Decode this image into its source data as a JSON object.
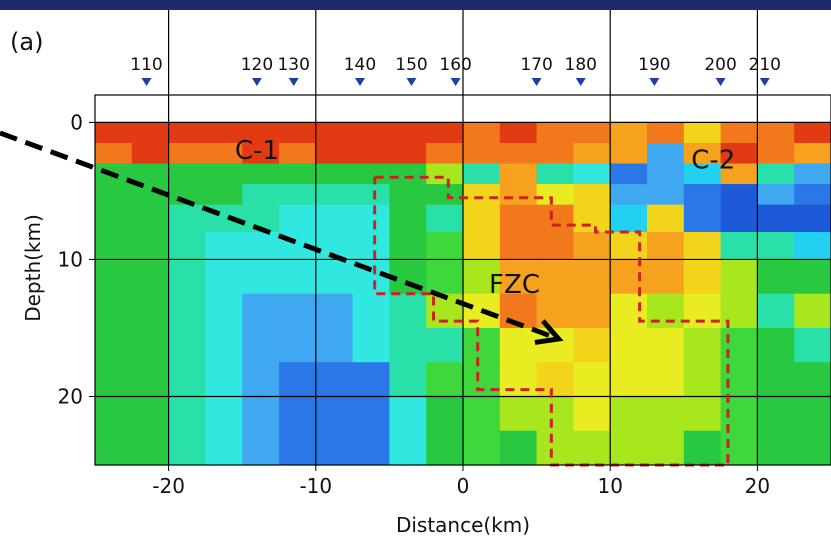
{
  "chart_data": {
    "type": "heatmap",
    "panel_label": "(a)",
    "xlabel": "Distance(km)",
    "ylabel": "Depth(km)",
    "xlim": [
      -25,
      25
    ],
    "ylim": [
      25,
      -2
    ],
    "x_ticks": [
      -20,
      -10,
      0,
      10,
      20
    ],
    "x_tick_labels": [
      "-20",
      "-10",
      "0",
      "10",
      "20"
    ],
    "y_ticks": [
      0,
      10,
      20
    ],
    "y_tick_labels": [
      "0",
      "10",
      "20"
    ],
    "grid": true,
    "stations": [
      {
        "label": "110",
        "x": -21.5
      },
      {
        "label": "120",
        "x": -14
      },
      {
        "label": "130",
        "x": -11.5
      },
      {
        "label": "140",
        "x": -7
      },
      {
        "label": "150",
        "x": -3.5
      },
      {
        "label": "160",
        "x": -0.5
      },
      {
        "label": "170",
        "x": 5
      },
      {
        "label": "180",
        "x": 8
      },
      {
        "label": "190",
        "x": 13
      },
      {
        "label": "200",
        "x": 17.5
      },
      {
        "label": "210",
        "x": 20.5
      }
    ],
    "station_marker_color": "#1a3fa8",
    "annotations": [
      {
        "text": "C-1",
        "x": -14,
        "y": 2
      },
      {
        "text": "C-2",
        "x": 17,
        "y": 2.7
      },
      {
        "text": "FZC",
        "x": 3.5,
        "y": 11.8
      }
    ],
    "fzc_outline": [
      [
        -6,
        4
      ],
      [
        -1,
        4
      ],
      [
        -1,
        5.5
      ],
      [
        6,
        5.5
      ],
      [
        6,
        7.5
      ],
      [
        9,
        7.5
      ],
      [
        9,
        8
      ],
      [
        12,
        8
      ],
      [
        12,
        14.5
      ],
      [
        18,
        14.5
      ],
      [
        18,
        25
      ],
      [
        6,
        25
      ],
      [
        6,
        19.5
      ],
      [
        1,
        19.5
      ],
      [
        1,
        14.5
      ],
      [
        -2,
        14.5
      ],
      [
        -2,
        12.5
      ],
      [
        -6,
        12.5
      ],
      [
        -6,
        4
      ]
    ],
    "fzc_outline_color": "#cc2222",
    "arrow": {
      "from": [
        -25,
        1.5
      ],
      "to": [
        6.5,
        15.8
      ],
      "color": "#000000"
    },
    "colors": {
      "gridline": "#000000",
      "background": "#ffffff",
      "frame": "#1c2a6b"
    }
  }
}
